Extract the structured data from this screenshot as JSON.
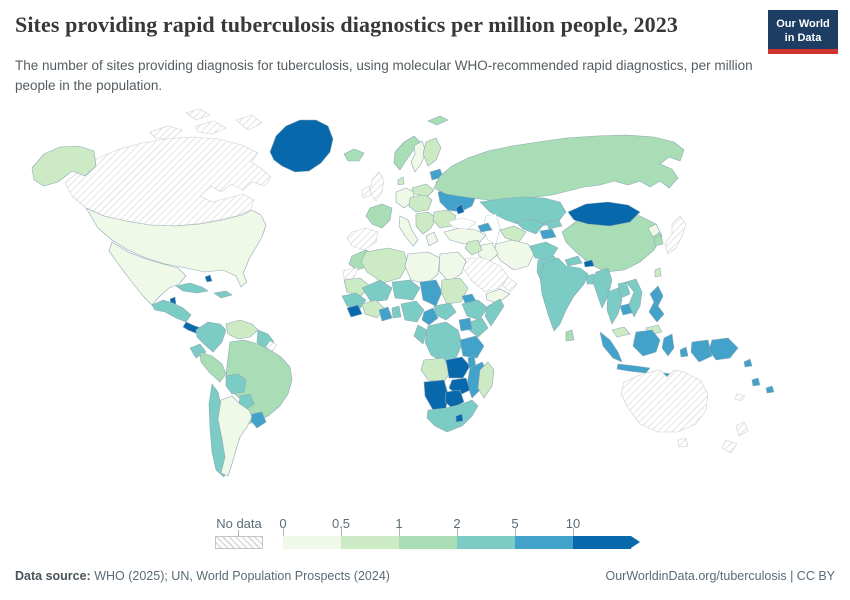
{
  "header": {
    "title": "Sites providing rapid tuberculosis diagnostics per million people, 2023",
    "subtitle": "The number of sites providing diagnosis for tuberculosis, using molecular WHO-recommended rapid diagnostics, per million people in the population."
  },
  "logo": {
    "line1": "Our World",
    "line2": "in Data",
    "background": "#1d3d63",
    "stripe": "#d0342c"
  },
  "legend": {
    "no_data_label": "No data"
  },
  "footer": {
    "source_label": "Data source:",
    "source_rest": " WHO (2025); UN, World Population Prospects (2024)",
    "right_text": "OurWorldinData.org/tuberculosis | CC BY"
  },
  "chart_data": {
    "type": "choropleth_map",
    "title": "Sites providing rapid tuberculosis diagnostics per million people, 2023",
    "subtitle": "The number of sites providing diagnosis for tuberculosis, using molecular WHO-recommended rapid diagnostics, per million people in the population.",
    "year": 2023,
    "unit": "sites per million people",
    "projection": "world",
    "legend_position": "bottom",
    "legend_type": "binned-color-scale-with-arrow",
    "ocean_color": "#ffffff",
    "border_color": "#8fa8b5",
    "no_data": {
      "label": "No data",
      "pattern": "diagonal-hatch",
      "hatch_color": "#d9d9d9",
      "countries": [
        "canada",
        "arctic-1",
        "arctic-2",
        "arctic-3",
        "arctic-4",
        "french-guiana",
        "united-kingdom",
        "ireland",
        "spain-portugal",
        "saudi-arabia",
        "oman",
        "western-sahara",
        "japan",
        "australia",
        "tasmania",
        "new-zealand-north",
        "new-zealand-south",
        "new-caledonia"
      ]
    },
    "bins": [
      {
        "label": "0",
        "range": "0-0.5",
        "color": "#f0f9e8",
        "countries": [
          "united-states",
          "mexico",
          "argentina",
          "iran",
          "iraq",
          "libya",
          "egypt",
          "yemen",
          "germany",
          "italy",
          "greece",
          "sweden",
          "north-korea",
          "turkey"
        ]
      },
      {
        "label": "0.5",
        "range": "0.5-1",
        "color": "#ccebc5",
        "countries": [
          "alaska",
          "finland",
          "denmark",
          "poland",
          "central-europe",
          "balkans",
          "romania-bulgaria",
          "syria-levant",
          "algeria",
          "mauritania",
          "sudan",
          "angola",
          "madagascar",
          "venezuela",
          "turkmenistan",
          "malaysia",
          "malaysia-borneo",
          "taiwan",
          "ivory-coast"
        ]
      },
      {
        "label": "1",
        "range": "1-2",
        "color": "#a8ddb5",
        "countries": [
          "brazil",
          "peru",
          "russia",
          "china",
          "france",
          "norway",
          "iceland",
          "svalbard",
          "morocco",
          "belarus",
          "south-korea",
          "sri-lanka"
        ]
      },
      {
        "label": "2",
        "range": "2-5",
        "color": "#7bccc4",
        "countries": [
          "colombia",
          "ecuador",
          "chile",
          "bolivia",
          "paraguay",
          "guyanas",
          "cuba",
          "hispaniola",
          "central-america",
          "kazakhstan",
          "uzbekistan",
          "kyrgyzstan",
          "afghanistan",
          "pakistan",
          "india",
          "nepal",
          "bangladesh",
          "myanmar",
          "thailand",
          "laos",
          "vietnam",
          "mali",
          "niger",
          "senegal-gambia",
          "togo-benin",
          "nigeria",
          "car",
          "ethiopia",
          "somalia",
          "kenya",
          "drc",
          "gabon-congo",
          "south-africa"
        ]
      },
      {
        "label": "5",
        "range": "5-10",
        "color": "#43a2ca",
        "countries": [
          "ukraine",
          "baltics",
          "caucasus",
          "tajikistan",
          "uruguay",
          "indonesia-sumatra",
          "indonesia-java",
          "indonesia-borneo",
          "indonesia-sulawesi",
          "indonesia-lesser-sunda",
          "indonesia-maluku",
          "indonesia-west-papua",
          "philippines",
          "papua-new-guinea",
          "cambodia",
          "ghana",
          "cameroon",
          "chad",
          "uganda",
          "tanzania",
          "malawi",
          "mozambique",
          "eritrea",
          "solomon-islands",
          "vanuatu",
          "fiji"
        ]
      },
      {
        "label": "10",
        "range": "10+",
        "color": "#0868ac",
        "countries": [
          "greenland",
          "mongolia",
          "bhutan",
          "namibia",
          "botswana",
          "zambia",
          "zimbabwe",
          "lesotho",
          "belize",
          "panama-costa-rica",
          "bahamas",
          "moldova",
          "guinea-sierra-leone"
        ]
      }
    ]
  }
}
